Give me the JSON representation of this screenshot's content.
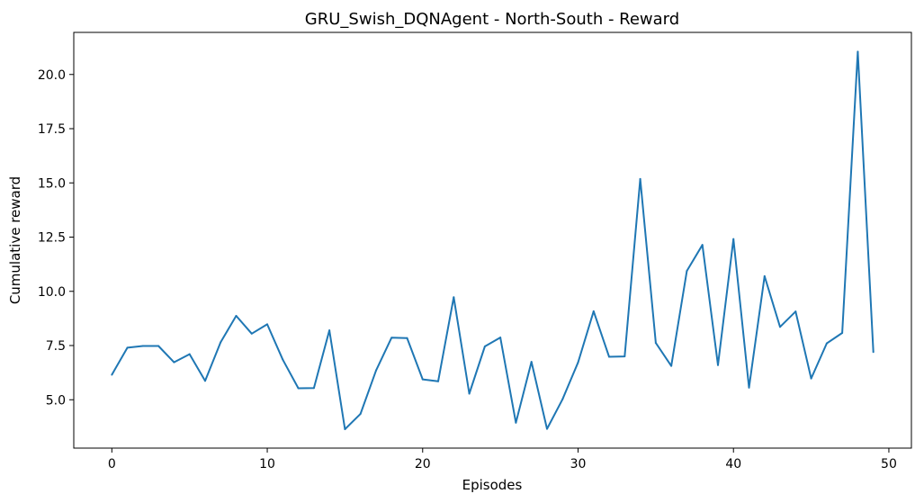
{
  "chart_data": {
    "type": "line",
    "title": "GRU_Swish_DQNAgent - North-South - Reward",
    "xlabel": "Episodes",
    "ylabel": "Cumulative reward",
    "xlim": [
      -2.45,
      51.45
    ],
    "ylim": [
      2.77,
      21.94
    ],
    "xticks": [
      0,
      10,
      20,
      30,
      40,
      50
    ],
    "xtick_labels": [
      "0",
      "10",
      "20",
      "30",
      "40",
      "50"
    ],
    "yticks": [
      5.0,
      7.5,
      10.0,
      12.5,
      15.0,
      17.5,
      20.0
    ],
    "ytick_labels": [
      "5.0",
      "7.5",
      "10.0",
      "12.5",
      "15.0",
      "17.5",
      "20.0"
    ],
    "grid": false,
    "line_color": "#1f77b4",
    "series": [
      {
        "x": [
          0,
          1,
          2,
          3,
          4,
          5,
          6,
          7,
          8,
          9,
          10,
          11,
          12,
          13,
          14,
          15,
          16,
          17,
          18,
          19,
          20,
          21,
          22,
          23,
          24,
          25,
          26,
          27,
          28,
          29,
          30,
          31,
          32,
          33,
          34,
          35,
          36,
          37,
          38,
          39,
          40,
          41,
          42,
          43,
          44,
          45,
          46,
          47,
          48,
          49
        ],
        "values": [
          6.15,
          7.4,
          7.48,
          7.48,
          6.73,
          7.1,
          5.87,
          7.65,
          8.87,
          8.05,
          8.48,
          6.85,
          5.53,
          5.54,
          8.2,
          3.64,
          4.35,
          6.35,
          7.86,
          7.84,
          5.94,
          5.85,
          9.73,
          5.28,
          7.46,
          7.87,
          3.94,
          6.75,
          3.66,
          5.02,
          6.72,
          9.08,
          6.98,
          7.0,
          15.18,
          7.62,
          6.56,
          10.94,
          12.14,
          6.6,
          12.41,
          5.56,
          10.7,
          8.36,
          9.07,
          5.98,
          7.6,
          8.08,
          21.05,
          7.2
        ]
      }
    ]
  }
}
